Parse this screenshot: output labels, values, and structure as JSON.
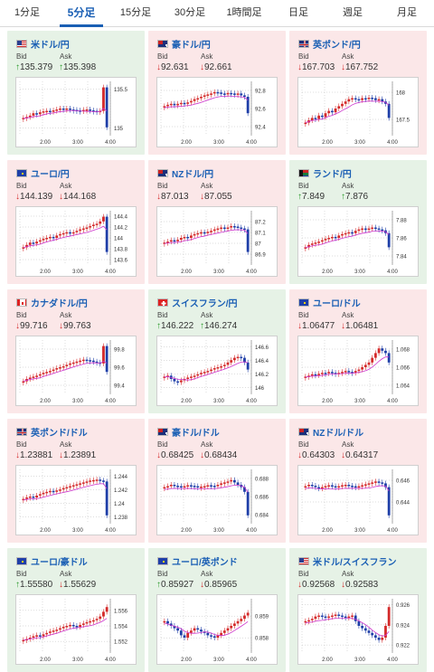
{
  "tabs": [
    {
      "label": "1分足",
      "active": false
    },
    {
      "label": "5分足",
      "active": true
    },
    {
      "label": "15分足",
      "active": false
    },
    {
      "label": "30分足",
      "active": false
    },
    {
      "label": "1時間足",
      "active": false
    },
    {
      "label": "日足",
      "active": false
    },
    {
      "label": "週足",
      "active": false
    },
    {
      "label": "月足",
      "active": false
    }
  ],
  "labels": {
    "bid": "Bid",
    "ask": "Ask"
  },
  "colors": {
    "down_bg": "#fbe7e8",
    "up_bg": "#e6f2e6",
    "down_arrow": "#d42a2a",
    "up_arrow": "#2a9a2a",
    "candle_up": "#d42a2a",
    "candle_down": "#1f3fa8",
    "ma_line": "#cc33cc",
    "title": "#1a5fb4"
  },
  "pairs": [
    {
      "name": "米ドル/円",
      "flag": "us",
      "dir": "up",
      "bid": "135.379",
      "ask": "135.398",
      "bid_arrow": "up",
      "ask_arrow": "up",
      "ticks": [
        "135.5",
        "135"
      ],
      "ylim": [
        134.9,
        135.6
      ],
      "xlabels": [
        "2:00",
        "3:00",
        "4:00"
      ],
      "shape": [
        0.3,
        0.32,
        0.35,
        0.4,
        0.38,
        0.42,
        0.44,
        0.45,
        0.43,
        0.46,
        0.48,
        0.5,
        0.49,
        0.5,
        0.48,
        0.47,
        0.46,
        0.45,
        0.47,
        0.48,
        0.46,
        0.45,
        0.44,
        0.45,
        0.95,
        0.1
      ]
    },
    {
      "name": "豪ドル/円",
      "flag": "au",
      "dir": "down",
      "bid": "92.631",
      "ask": "92.661",
      "bid_arrow": "down",
      "ask_arrow": "down",
      "ticks": [
        "92.8",
        "92.6",
        "92.4"
      ],
      "ylim": [
        92.3,
        92.9
      ],
      "xlabels": [
        "2:00",
        "3:00",
        "4:00"
      ],
      "shape": [
        0.55,
        0.58,
        0.6,
        0.57,
        0.6,
        0.62,
        0.6,
        0.63,
        0.66,
        0.7,
        0.72,
        0.75,
        0.78,
        0.8,
        0.82,
        0.85,
        0.84,
        0.82,
        0.8,
        0.83,
        0.82,
        0.8,
        0.82,
        0.78,
        0.75,
        0.4
      ]
    },
    {
      "name": "英ポンド/円",
      "flag": "gb",
      "dir": "down",
      "bid": "167.703",
      "ask": "167.752",
      "bid_arrow": "down",
      "ask_arrow": "down",
      "ticks": [
        "168",
        "167.5"
      ],
      "ylim": [
        167.2,
        168.2
      ],
      "xlabels": [
        "2:00",
        "3:00",
        "4:00"
      ],
      "shape": [
        0.2,
        0.25,
        0.3,
        0.28,
        0.35,
        0.32,
        0.4,
        0.45,
        0.42,
        0.5,
        0.55,
        0.6,
        0.65,
        0.7,
        0.72,
        0.7,
        0.68,
        0.72,
        0.7,
        0.73,
        0.72,
        0.68,
        0.7,
        0.65,
        0.6,
        0.3
      ]
    },
    {
      "name": "ユーロ/円",
      "flag": "eu",
      "dir": "down",
      "bid": "144.139",
      "ask": "144.168",
      "bid_arrow": "down",
      "ask_arrow": "down",
      "ticks": [
        "144.4",
        "144.2",
        "144",
        "143.8",
        "143.6"
      ],
      "ylim": [
        143.5,
        144.5
      ],
      "xlabels": [
        "2:00",
        "3:00",
        "4:00"
      ],
      "shape": [
        0.3,
        0.35,
        0.4,
        0.38,
        0.42,
        0.45,
        0.48,
        0.5,
        0.52,
        0.5,
        0.55,
        0.58,
        0.6,
        0.62,
        0.6,
        0.62,
        0.65,
        0.68,
        0.7,
        0.72,
        0.75,
        0.78,
        0.8,
        0.85,
        0.95,
        0.2
      ]
    },
    {
      "name": "NZドル/円",
      "flag": "nz",
      "dir": "down",
      "bid": "87.013",
      "ask": "87.055",
      "bid_arrow": "down",
      "ask_arrow": "down",
      "ticks": [
        "87.2",
        "87.1",
        "87",
        "86.9"
      ],
      "ylim": [
        86.8,
        87.3
      ],
      "xlabels": [
        "2:00",
        "3:00",
        "4:00"
      ],
      "shape": [
        0.4,
        0.42,
        0.45,
        0.43,
        0.46,
        0.5,
        0.52,
        0.5,
        0.55,
        0.58,
        0.6,
        0.62,
        0.6,
        0.63,
        0.65,
        0.68,
        0.7,
        0.72,
        0.7,
        0.72,
        0.75,
        0.74,
        0.72,
        0.7,
        0.68,
        0.2
      ]
    },
    {
      "name": "ランド/円",
      "flag": "za",
      "dir": "up",
      "bid": "7.849",
      "ask": "7.876",
      "bid_arrow": "up",
      "ask_arrow": "up",
      "ticks": [
        "7.88",
        "7.86",
        "7.84"
      ],
      "ylim": [
        7.83,
        7.89
      ],
      "xlabels": [
        "2:00",
        "3:00",
        "4:00"
      ],
      "shape": [
        0.3,
        0.35,
        0.38,
        0.4,
        0.42,
        0.45,
        0.48,
        0.5,
        0.52,
        0.5,
        0.55,
        0.58,
        0.6,
        0.62,
        0.6,
        0.65,
        0.68,
        0.7,
        0.68,
        0.7,
        0.72,
        0.7,
        0.68,
        0.66,
        0.6,
        0.3
      ]
    },
    {
      "name": "カナダドル/円",
      "flag": "ca",
      "dir": "down",
      "bid": "99.716",
      "ask": "99.763",
      "bid_arrow": "down",
      "ask_arrow": "down",
      "ticks": [
        "99.8",
        "99.6",
        "99.4"
      ],
      "ylim": [
        99.3,
        99.9
      ],
      "xlabels": [
        "2:00",
        "3:00",
        "4:00"
      ],
      "shape": [
        0.2,
        0.25,
        0.28,
        0.3,
        0.32,
        0.35,
        0.38,
        0.4,
        0.42,
        0.45,
        0.48,
        0.5,
        0.52,
        0.55,
        0.58,
        0.6,
        0.62,
        0.64,
        0.66,
        0.65,
        0.64,
        0.62,
        0.6,
        0.58,
        0.95,
        0.4
      ]
    },
    {
      "name": "スイスフラン/円",
      "flag": "ch",
      "dir": "up",
      "bid": "146.222",
      "ask": "146.274",
      "bid_arrow": "up",
      "ask_arrow": "up",
      "ticks": [
        "146.6",
        "146.4",
        "146.2",
        "146"
      ],
      "ylim": [
        145.9,
        146.7
      ],
      "xlabels": [
        "2:00",
        "3:00",
        "4:00"
      ],
      "shape": [
        0.3,
        0.32,
        0.25,
        0.2,
        0.18,
        0.22,
        0.25,
        0.28,
        0.3,
        0.32,
        0.35,
        0.38,
        0.4,
        0.42,
        0.45,
        0.48,
        0.5,
        0.52,
        0.55,
        0.6,
        0.65,
        0.7,
        0.72,
        0.7,
        0.6,
        0.45
      ]
    },
    {
      "name": "ユーロ/ドル",
      "flag": "eu",
      "dir": "down",
      "bid": "1.06477",
      "ask": "1.06481",
      "bid_arrow": "down",
      "ask_arrow": "down",
      "ticks": [
        "1.068",
        "1.066",
        "1.064"
      ],
      "ylim": [
        1.063,
        1.069
      ],
      "xlabels": [
        "2:00",
        "3:00",
        "4:00"
      ],
      "shape": [
        0.3,
        0.32,
        0.35,
        0.33,
        0.36,
        0.38,
        0.37,
        0.4,
        0.38,
        0.36,
        0.38,
        0.4,
        0.42,
        0.4,
        0.38,
        0.42,
        0.45,
        0.5,
        0.55,
        0.6,
        0.7,
        0.8,
        0.9,
        0.85,
        0.8,
        0.6
      ]
    },
    {
      "name": "英ポンド/ドル",
      "flag": "gb",
      "dir": "down",
      "bid": "1.23881",
      "ask": "1.23891",
      "bid_arrow": "down",
      "ask_arrow": "down",
      "ticks": [
        "1.244",
        "1.242",
        "1.24",
        "1.238"
      ],
      "ylim": [
        1.237,
        1.245
      ],
      "xlabels": [
        "2:00",
        "3:00",
        "4:00"
      ],
      "shape": [
        0.45,
        0.48,
        0.5,
        0.48,
        0.52,
        0.55,
        0.58,
        0.6,
        0.62,
        0.6,
        0.63,
        0.65,
        0.68,
        0.7,
        0.72,
        0.74,
        0.76,
        0.78,
        0.8,
        0.82,
        0.84,
        0.85,
        0.86,
        0.84,
        0.82,
        0.1
      ]
    },
    {
      "name": "豪ドル/ドル",
      "flag": "au",
      "dir": "down",
      "bid": "0.68425",
      "ask": "0.68434",
      "bid_arrow": "down",
      "ask_arrow": "down",
      "ticks": [
        "0.688",
        "0.686",
        "0.684"
      ],
      "ylim": [
        0.683,
        0.689
      ],
      "xlabels": [
        "2:00",
        "3:00",
        "4:00"
      ],
      "shape": [
        0.7,
        0.72,
        0.75,
        0.73,
        0.72,
        0.7,
        0.72,
        0.74,
        0.73,
        0.72,
        0.7,
        0.71,
        0.72,
        0.74,
        0.73,
        0.72,
        0.75,
        0.78,
        0.8,
        0.82,
        0.85,
        0.8,
        0.75,
        0.7,
        0.6,
        0.1
      ]
    },
    {
      "name": "NZドル/ドル",
      "flag": "nz",
      "dir": "down",
      "bid": "0.64303",
      "ask": "0.64317",
      "bid_arrow": "down",
      "ask_arrow": "down",
      "ticks": [
        "0.646",
        "0.644"
      ],
      "ylim": [
        0.642,
        0.647
      ],
      "xlabels": [
        "2:00",
        "3:00",
        "4:00"
      ],
      "shape": [
        0.72,
        0.75,
        0.73,
        0.7,
        0.68,
        0.7,
        0.72,
        0.74,
        0.72,
        0.7,
        0.72,
        0.74,
        0.75,
        0.73,
        0.72,
        0.7,
        0.72,
        0.74,
        0.76,
        0.78,
        0.8,
        0.82,
        0.8,
        0.78,
        0.7,
        0.1
      ]
    },
    {
      "name": "ユーロ/豪ドル",
      "flag": "eu",
      "dir": "up",
      "bid": "1.55580",
      "ask": "1.55629",
      "bid_arrow": "up",
      "ask_arrow": "down",
      "ticks": [
        "1.556",
        "1.554",
        "1.552"
      ],
      "ylim": [
        1.5505,
        1.5575
      ],
      "xlabels": [
        "2:00",
        "3:00",
        "4:00"
      ],
      "shape": [
        0.2,
        0.22,
        0.25,
        0.28,
        0.3,
        0.28,
        0.32,
        0.35,
        0.38,
        0.4,
        0.42,
        0.45,
        0.48,
        0.5,
        0.52,
        0.5,
        0.48,
        0.52,
        0.55,
        0.58,
        0.6,
        0.62,
        0.65,
        0.7,
        0.8,
        0.9
      ]
    },
    {
      "name": "ユーロ/英ポンド",
      "flag": "eu",
      "dir": "up",
      "bid": "0.85927",
      "ask": "0.85965",
      "bid_arrow": "up",
      "ask_arrow": "down",
      "ticks": [
        "0.859",
        "0.858"
      ],
      "ylim": [
        0.8573,
        0.8598
      ],
      "xlabels": [
        "2:00",
        "3:00",
        "4:00"
      ],
      "shape": [
        0.6,
        0.55,
        0.5,
        0.45,
        0.4,
        0.3,
        0.25,
        0.35,
        0.4,
        0.45,
        0.42,
        0.38,
        0.35,
        0.3,
        0.28,
        0.25,
        0.3,
        0.35,
        0.4,
        0.45,
        0.5,
        0.55,
        0.6,
        0.65,
        0.72,
        0.78
      ]
    },
    {
      "name": "米ドル/スイスフラン",
      "flag": "us",
      "dir": "up",
      "bid": "0.92568",
      "ask": "0.92583",
      "bid_arrow": "down",
      "ask_arrow": "down",
      "ticks": [
        "0.926",
        "0.924",
        "0.922"
      ],
      "ylim": [
        0.9212,
        0.9266
      ],
      "xlabels": [
        "2:00",
        "3:00",
        "4:00"
      ],
      "shape": [
        0.6,
        0.62,
        0.65,
        0.7,
        0.72,
        0.7,
        0.68,
        0.7,
        0.72,
        0.74,
        0.72,
        0.7,
        0.68,
        0.7,
        0.72,
        0.6,
        0.5,
        0.45,
        0.4,
        0.35,
        0.3,
        0.25,
        0.2,
        0.25,
        0.5,
        0.9
      ]
    }
  ]
}
